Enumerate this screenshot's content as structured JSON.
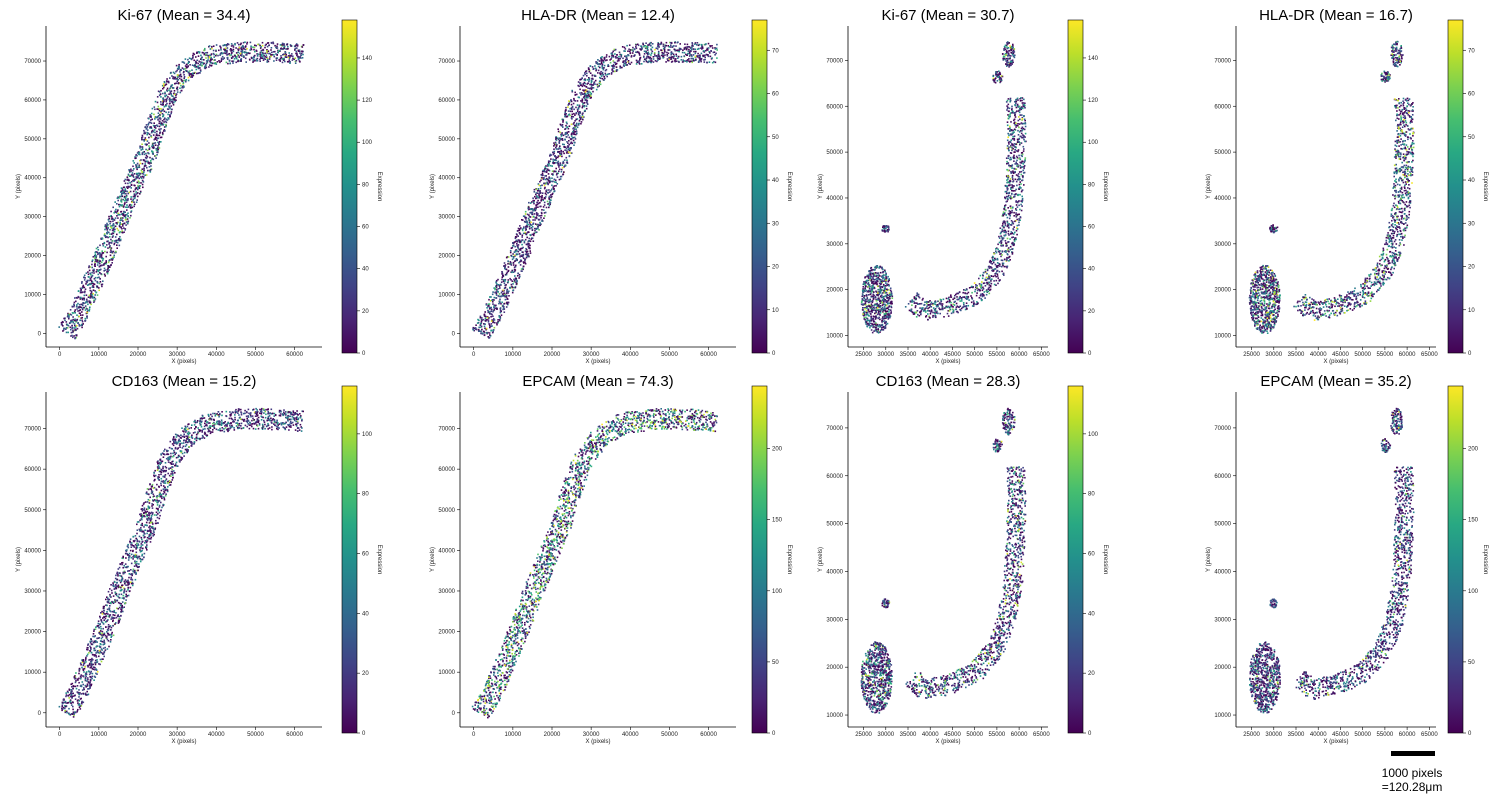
{
  "chart_data": [
    {
      "type": "scatter",
      "title": "Ki-67 (Mean = 34.4)",
      "xlabel": "X (pixels)",
      "ylabel": "Y (pixels)",
      "xlim": [
        -3500,
        67000
      ],
      "ylim": [
        -3500,
        79000
      ],
      "xticks": [
        0,
        10000,
        20000,
        30000,
        40000,
        50000,
        60000
      ],
      "yticks": [
        0,
        10000,
        20000,
        30000,
        40000,
        50000,
        60000,
        70000
      ],
      "colorbar": {
        "label": "Expression",
        "min": 0,
        "max": 158,
        "ticks": [
          0,
          20,
          40,
          60,
          80,
          100,
          120,
          140
        ]
      },
      "mean": 34.4,
      "colormap": "viridis",
      "tissue": "strip",
      "seed": 11,
      "hot_bias": 0.12,
      "grid": false
    },
    {
      "type": "scatter",
      "title": "HLA-DR (Mean = 12.4)",
      "xlabel": "X (pixels)",
      "ylabel": "Y (pixels)",
      "xlim": [
        -3500,
        67000
      ],
      "ylim": [
        -3500,
        79000
      ],
      "xticks": [
        0,
        10000,
        20000,
        30000,
        40000,
        50000,
        60000
      ],
      "yticks": [
        0,
        10000,
        20000,
        30000,
        40000,
        50000,
        60000,
        70000
      ],
      "colorbar": {
        "label": "Expression",
        "min": 0,
        "max": 77,
        "ticks": [
          0,
          10,
          20,
          30,
          40,
          50,
          60,
          70
        ]
      },
      "mean": 12.4,
      "colormap": "viridis",
      "tissue": "strip",
      "seed": 23,
      "hot_bias": 0.06,
      "grid": false
    },
    {
      "type": "scatter",
      "title": "Ki-67 (Mean = 30.7)",
      "xlabel": "X (pixels)",
      "ylabel": "Y (pixels)",
      "xlim": [
        21500,
        66500
      ],
      "ylim": [
        7500,
        77500
      ],
      "xticks": [
        25000,
        30000,
        35000,
        40000,
        45000,
        50000,
        55000,
        60000,
        65000
      ],
      "yticks": [
        10000,
        20000,
        30000,
        40000,
        50000,
        60000,
        70000
      ],
      "colorbar": {
        "label": "Expression",
        "min": 0,
        "max": 158,
        "ticks": [
          0,
          20,
          40,
          60,
          80,
          100,
          120,
          140
        ]
      },
      "mean": 30.7,
      "colormap": "viridis",
      "tissue": "hook",
      "seed": 37,
      "hot_bias": 0.12,
      "grid": false
    },
    {
      "type": "scatter",
      "title": "HLA-DR (Mean = 16.7)",
      "xlabel": "X (pixels)",
      "ylabel": "Y (pixels)",
      "xlim": [
        21500,
        66500
      ],
      "ylim": [
        7500,
        77500
      ],
      "xticks": [
        25000,
        30000,
        35000,
        40000,
        45000,
        50000,
        55000,
        60000,
        65000
      ],
      "yticks": [
        10000,
        20000,
        30000,
        40000,
        50000,
        60000,
        70000
      ],
      "colorbar": {
        "label": "Expression",
        "min": 0,
        "max": 77,
        "ticks": [
          0,
          10,
          20,
          30,
          40,
          50,
          60,
          70
        ]
      },
      "mean": 16.7,
      "colormap": "viridis",
      "tissue": "hook",
      "seed": 41,
      "hot_bias": 0.18,
      "grid": false
    },
    {
      "type": "scatter",
      "title": "CD163 (Mean = 15.2)",
      "xlabel": "X (pixels)",
      "ylabel": "Y (pixels)",
      "xlim": [
        -3500,
        67000
      ],
      "ylim": [
        -3500,
        79000
      ],
      "xticks": [
        0,
        10000,
        20000,
        30000,
        40000,
        50000,
        60000
      ],
      "yticks": [
        0,
        10000,
        20000,
        30000,
        40000,
        50000,
        60000,
        70000
      ],
      "colorbar": {
        "label": "Expression",
        "min": 0,
        "max": 116,
        "ticks": [
          0,
          20,
          40,
          60,
          80,
          100
        ]
      },
      "mean": 15.2,
      "colormap": "viridis",
      "tissue": "strip",
      "seed": 53,
      "hot_bias": 0.08,
      "grid": false
    },
    {
      "type": "scatter",
      "title": "EPCAM (Mean = 74.3)",
      "xlabel": "X (pixels)",
      "ylabel": "Y (pixels)",
      "xlim": [
        -3500,
        67000
      ],
      "ylim": [
        -3500,
        79000
      ],
      "xticks": [
        0,
        10000,
        20000,
        30000,
        40000,
        50000,
        60000
      ],
      "yticks": [
        0,
        10000,
        20000,
        30000,
        40000,
        50000,
        60000,
        70000
      ],
      "colorbar": {
        "label": "Expression",
        "min": 0,
        "max": 244,
        "ticks": [
          0,
          50,
          100,
          150,
          200
        ]
      },
      "mean": 74.3,
      "colormap": "viridis",
      "tissue": "strip",
      "seed": 67,
      "hot_bias": 0.35,
      "grid": false
    },
    {
      "type": "scatter",
      "title": "CD163 (Mean = 28.3)",
      "xlabel": "X (pixels)",
      "ylabel": "Y (pixels)",
      "xlim": [
        21500,
        66500
      ],
      "ylim": [
        7500,
        77500
      ],
      "xticks": [
        25000,
        30000,
        35000,
        40000,
        45000,
        50000,
        55000,
        60000,
        65000
      ],
      "yticks": [
        10000,
        20000,
        30000,
        40000,
        50000,
        60000,
        70000
      ],
      "colorbar": {
        "label": "Expression",
        "min": 0,
        "max": 116,
        "ticks": [
          0,
          20,
          40,
          60,
          80,
          100
        ]
      },
      "mean": 28.3,
      "colormap": "viridis",
      "tissue": "hook",
      "seed": 71,
      "hot_bias": 0.16,
      "grid": false
    },
    {
      "type": "scatter",
      "title": "EPCAM (Mean = 35.2)",
      "xlabel": "X (pixels)",
      "ylabel": "Y (pixels)",
      "xlim": [
        21500,
        66500
      ],
      "ylim": [
        7500,
        77500
      ],
      "xticks": [
        25000,
        30000,
        35000,
        40000,
        45000,
        50000,
        55000,
        60000,
        65000
      ],
      "yticks": [
        10000,
        20000,
        30000,
        40000,
        50000,
        60000,
        70000
      ],
      "colorbar": {
        "label": "Expression",
        "min": 0,
        "max": 244,
        "ticks": [
          0,
          50,
          100,
          150,
          200
        ]
      },
      "mean": 35.2,
      "colormap": "viridis",
      "tissue": "hook",
      "seed": 83,
      "hot_bias": 0.08,
      "grid": false
    }
  ],
  "scale_bar": {
    "line1": "1000 pixels",
    "line2": "=120.28μm",
    "length_units": 1000,
    "color": "#000000"
  },
  "colors": {
    "viridis_low": "#440154",
    "viridis_mid": "#21918c",
    "viridis_high": "#fde725",
    "axis": "#000000"
  }
}
